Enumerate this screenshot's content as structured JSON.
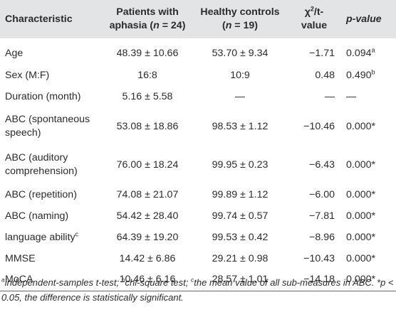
{
  "table": {
    "headers": {
      "characteristic": "Characteristic",
      "patients_line1": "Patients with",
      "patients_line2_pre": "aphasia (",
      "patients_n_var": "n",
      "patients_line2_post": " = 24)",
      "controls_line1": "Healthy controls",
      "controls_line2_pre": "(",
      "controls_n_var": "n",
      "controls_line2_post": " = 19)",
      "stat_chi": "χ",
      "stat_chi_sup": "2",
      "stat_chi_post": "/t-",
      "stat_line2": "value",
      "pvalue": "p-value"
    },
    "rows": [
      {
        "label": "Age",
        "label_sup": "",
        "patients": "48.39 ± 10.66",
        "controls": "53.70 ± 9.34",
        "stat": "−1.71",
        "p": "0.094",
        "p_sup": "a"
      },
      {
        "label": "Sex (M:F)",
        "label_sup": "",
        "patients": "16:8",
        "controls": "10:9",
        "stat": "0.48",
        "p": "0.490",
        "p_sup": "b"
      },
      {
        "label": "Duration (month)",
        "label_sup": "",
        "patients": "5.16 ± 5.58",
        "controls": "—",
        "stat": "—",
        "p": "—",
        "p_sup": ""
      },
      {
        "label_line1": "ABC (spontaneous",
        "label_line2": "speech)",
        "patients": "53.08 ± 18.86",
        "controls": "98.53 ± 1.12",
        "stat": "−10.46",
        "p": "0.000*",
        "p_sup": ""
      },
      {
        "label_line1": "ABC (auditory",
        "label_line2": "comprehension)",
        "patients": "76.00 ± 18.24",
        "controls": "99.95 ± 0.23",
        "stat": "−6.43",
        "p": "0.000*",
        "p_sup": ""
      },
      {
        "label": "ABC (repetition)",
        "label_sup": "",
        "patients": "74.08 ± 21.07",
        "controls": "99.89 ± 1.12",
        "stat": "−6.00",
        "p": "0.000*",
        "p_sup": ""
      },
      {
        "label": "ABC (naming)",
        "label_sup": "",
        "patients": "54.42 ± 28.40",
        "controls": "99.74 ± 0.57",
        "stat": "−7.81",
        "p": "0.000*",
        "p_sup": ""
      },
      {
        "label": "language ability",
        "label_sup": "c",
        "patients": "64.39 ± 19.20",
        "controls": "99.53 ± 0.42",
        "stat": "−8.96",
        "p": "0.000*",
        "p_sup": ""
      },
      {
        "label": "MMSE",
        "label_sup": "",
        "patients": "14.42 ± 6.86",
        "controls": "29.21 ± 0.98",
        "stat": "−10.43",
        "p": "0.000*",
        "p_sup": ""
      },
      {
        "label": "MoCA",
        "label_sup": "",
        "patients": "10.46 ± 6.16",
        "controls": "28.57 ± 1.01",
        "stat": "−14.18",
        "p": "0.000*",
        "p_sup": ""
      }
    ]
  },
  "footnote": {
    "a_sup": "a",
    "a_text": "independent-samples t-test; ",
    "b_sup": "b",
    "b_text": "chi-square test; ",
    "c_sup": "c",
    "c_text": "the mean value of all sub-measures in ABC. *p < 0.05, the difference is statistically significant."
  }
}
